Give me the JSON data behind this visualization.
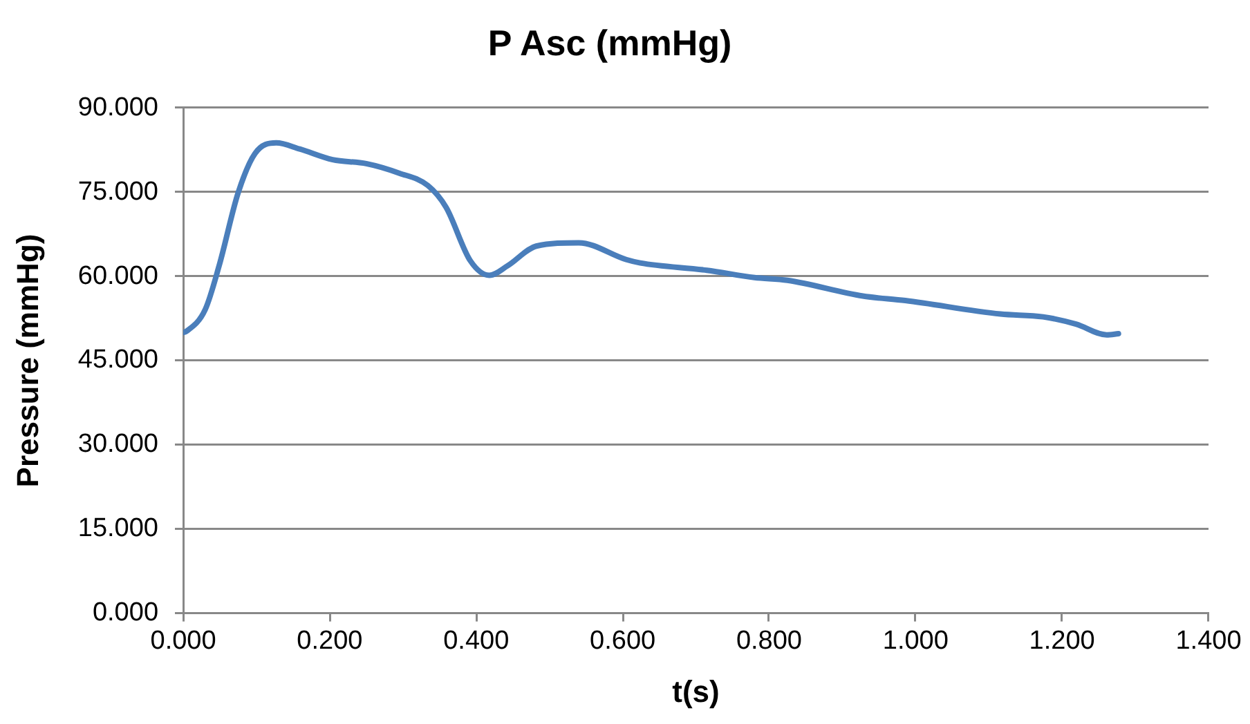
{
  "chart_data": {
    "type": "line",
    "title": "P Asc (mmHg)",
    "xlabel": "t(s)",
    "ylabel": "Pressure (mmHg)",
    "series": [
      {
        "color": "#4a7ebb",
        "x": [
          0,
          0.004,
          0.03,
          0.049,
          0.075,
          0.098,
          0.127,
          0.159,
          0.204,
          0.25,
          0.295,
          0.334,
          0.359,
          0.392,
          0.418,
          0.443,
          0.482,
          0.54,
          0.605,
          0.624,
          0.715,
          0.78,
          0.825,
          0.928,
          0.986,
          1.116,
          1.174,
          1.219,
          1.261,
          1.277
        ],
        "values": [
          50,
          50.2,
          54.1,
          61.9,
          74.9,
          81.9,
          83.8,
          82.7,
          80.8,
          80.1,
          78.4,
          76.2,
          72.3,
          62.8,
          60.2,
          61.9,
          65.4,
          66,
          63,
          62.4,
          61.1,
          59.8,
          59.3,
          56.5,
          55.7,
          53.3,
          52.8,
          51.5,
          49.6,
          49.8
        ]
      }
    ],
    "xlim": [
      0,
      1.4
    ],
    "xticks": [
      {
        "value": 0,
        "label": "0.000"
      },
      {
        "value": 0.2,
        "label": "0.200"
      },
      {
        "value": 0.4,
        "label": "0.400"
      },
      {
        "value": 0.6,
        "label": "0.600"
      },
      {
        "value": 0.8,
        "label": "0.800"
      },
      {
        "value": 1,
        "label": "1.000"
      },
      {
        "value": 1.2,
        "label": "1.200"
      },
      {
        "value": 1.4,
        "label": "1.400"
      }
    ],
    "ylim": [
      0,
      90
    ],
    "yticks": [
      {
        "value": 0,
        "label": "0.000"
      },
      {
        "value": 15,
        "label": "15.000"
      },
      {
        "value": 30,
        "label": "30.000"
      },
      {
        "value": 45,
        "label": "45.000"
      },
      {
        "value": 60,
        "label": "60.000"
      },
      {
        "value": 75,
        "label": "75.000"
      },
      {
        "value": 90,
        "label": "90.000"
      }
    ],
    "grid": "y",
    "legend": false,
    "marker": "none",
    "line_style": "solid"
  }
}
